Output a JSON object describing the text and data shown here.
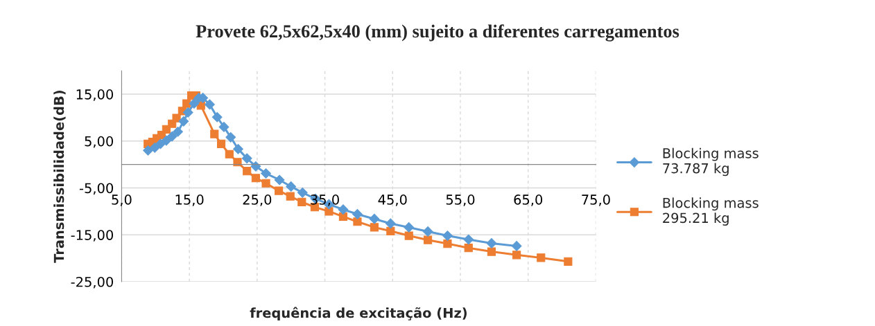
{
  "chart_data": {
    "type": "line",
    "title": "Provete 62,5x62,5x40 (mm) sujeito a diferentes carregamentos",
    "xlabel": "frequência de excitação (Hz)",
    "ylabel": "Transmissibilidade(dB)",
    "series": [
      {
        "name": "Blocking mass\n73.787 kg",
        "color": "#5b9bd5",
        "marker": "diamond",
        "x": [
          8.9,
          9.9,
          10.75,
          11.6,
          12.45,
          13.3,
          14.15,
          14.8,
          15.7,
          16.4,
          17.0,
          18.0,
          19.1,
          20.1,
          21.1,
          22.2,
          23.5,
          24.8,
          26.3,
          28.3,
          30.0,
          31.7,
          33.6,
          35.6,
          37.7,
          39.8,
          42.3,
          44.7,
          47.4,
          50.2,
          53.1,
          56.2,
          59.6,
          63.3
        ],
        "values": [
          3.0,
          3.6,
          4.4,
          5.1,
          6.0,
          7.0,
          9.2,
          11.1,
          13.0,
          14.2,
          14.2,
          12.8,
          10.1,
          8.0,
          5.8,
          3.3,
          1.3,
          -0.4,
          -1.9,
          -3.3,
          -4.7,
          -6.0,
          -7.3,
          -8.5,
          -9.6,
          -10.6,
          -11.6,
          -12.6,
          -13.4,
          -14.3,
          -15.2,
          -16.0,
          -16.8,
          -17.4
        ]
      },
      {
        "name": "Blocking mass\n295.21 kg",
        "color": "#ed7d31",
        "marker": "square",
        "x": [
          8.87,
          9.55,
          10.2,
          10.9,
          11.6,
          12.45,
          13.1,
          13.95,
          14.6,
          15.3,
          16.0,
          16.7,
          18.7,
          19.7,
          20.9,
          22.1,
          23.5,
          24.8,
          26.3,
          28.2,
          29.9,
          31.6,
          33.5,
          35.6,
          37.7,
          39.8,
          42.3,
          44.7,
          47.4,
          50.2,
          53.1,
          56.2,
          59.6,
          63.3,
          66.9,
          70.9
        ],
        "values": [
          4.4,
          4.8,
          5.6,
          6.3,
          7.5,
          8.7,
          9.9,
          11.4,
          13.0,
          14.7,
          14.7,
          12.6,
          6.5,
          4.4,
          2.2,
          0.5,
          -1.4,
          -2.9,
          -4.0,
          -5.6,
          -6.8,
          -8.0,
          -9.1,
          -10.0,
          -11.1,
          -12.2,
          -13.4,
          -14.2,
          -15.2,
          -16.1,
          -16.9,
          -17.8,
          -18.6,
          -19.3,
          -19.9,
          -20.7
        ]
      }
    ],
    "xlim": [
      5,
      75
    ],
    "xticks": [
      {
        "value": 5,
        "label": "5,0"
      },
      {
        "value": 15,
        "label": "15,0"
      },
      {
        "value": 25,
        "label": "25,0"
      },
      {
        "value": 35,
        "label": "35,0"
      },
      {
        "value": 45,
        "label": "45,0"
      },
      {
        "value": 55,
        "label": "55,0"
      },
      {
        "value": 65,
        "label": "65,0"
      },
      {
        "value": 75,
        "label": "75,0"
      }
    ],
    "ylim": [
      -25,
      20
    ],
    "yticks": [
      {
        "value": -25,
        "label": "-25,00"
      },
      {
        "value": -15,
        "label": "-15,00"
      },
      {
        "value": -5,
        "label": "-5,00"
      },
      {
        "value": 5,
        "label": "5,00"
      },
      {
        "value": 15,
        "label": "15,00"
      }
    ],
    "grid": true,
    "legend": "right",
    "line_style": "solid"
  }
}
